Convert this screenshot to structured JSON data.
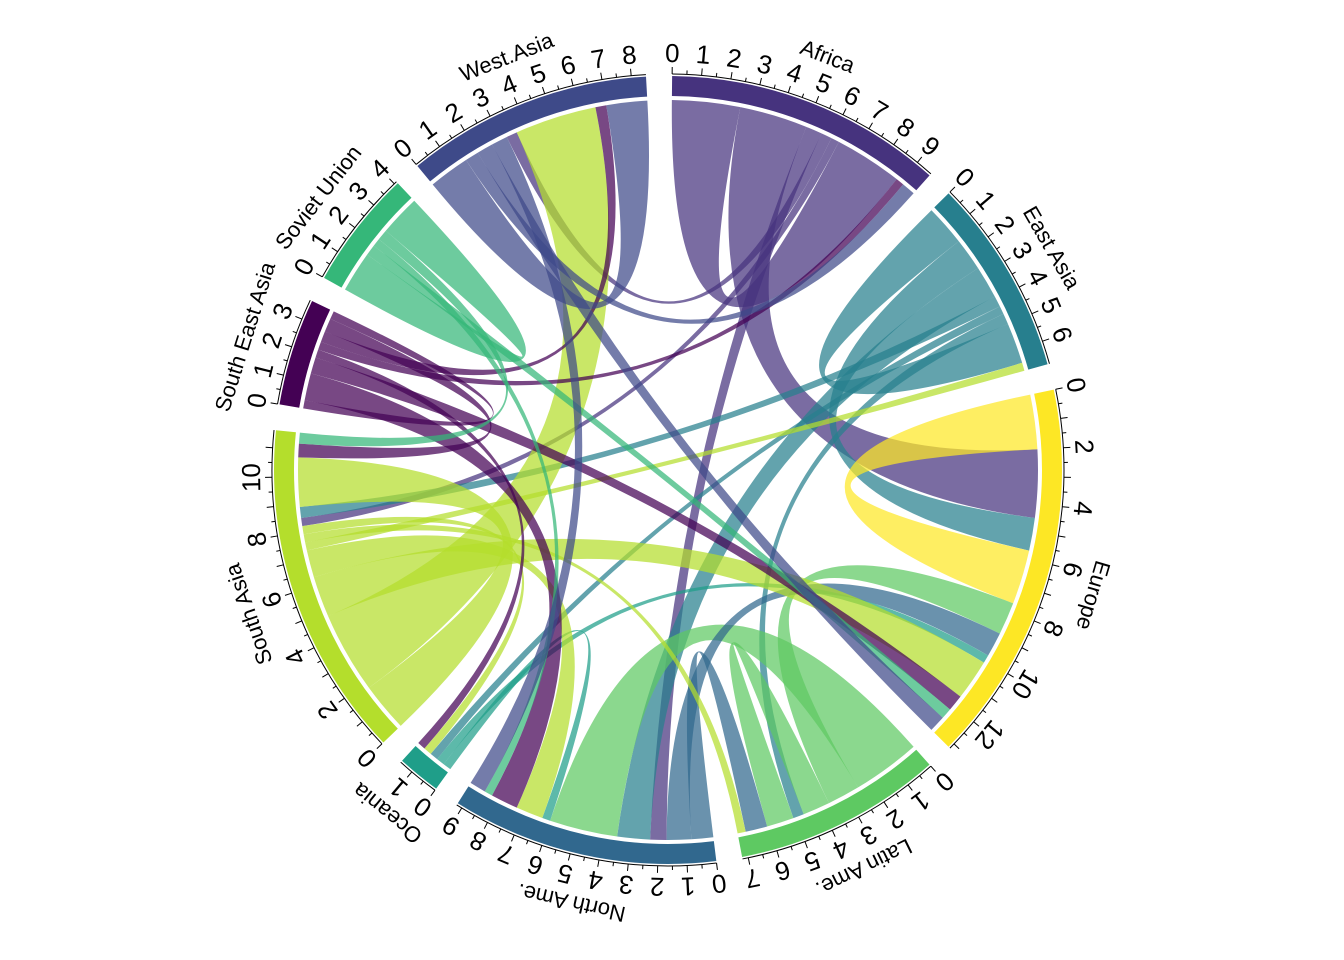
{
  "chart_data": {
    "type": "chord",
    "title": "",
    "tick_step": 1,
    "sectors": [
      {
        "name": "Africa",
        "color": "#46337E",
        "label_step": 1
      },
      {
        "name": "East Asia",
        "color": "#277F8E",
        "label_step": 1
      },
      {
        "name": "Europe",
        "color": "#FDE725",
        "label_step": 2
      },
      {
        "name": "Latin Ame.",
        "color": "#5EC962",
        "label_step": 1
      },
      {
        "name": "North Ame.",
        "color": "#31688E",
        "label_step": 1
      },
      {
        "name": "Oceania",
        "color": "#1F9E89",
        "label_step": 1
      },
      {
        "name": "South Asia",
        "color": "#B4DE2C",
        "label_step": 2
      },
      {
        "name": "South East Asia",
        "color": "#440154",
        "label_step": 1
      },
      {
        "name": "Soviet Union",
        "color": "#35B779",
        "label_step": 1
      },
      {
        "name": "West.Asia",
        "color": "#3E4A89",
        "label_step": 1
      }
    ],
    "flows": [
      {
        "from": "Africa",
        "to": "Africa",
        "value": 2.5
      },
      {
        "from": "Africa",
        "to": "Europe",
        "value": 2.5
      },
      {
        "from": "Africa",
        "to": "North Ame.",
        "value": 0.6
      },
      {
        "from": "Africa",
        "to": "West.Asia",
        "value": 0.4
      },
      {
        "from": "Africa",
        "to": "South Asia",
        "value": 0.3
      },
      {
        "from": "East Asia",
        "to": "East Asia",
        "value": 1.5
      },
      {
        "from": "East Asia",
        "to": "Europe",
        "value": 1.2
      },
      {
        "from": "East Asia",
        "to": "North Ame.",
        "value": 1.2
      },
      {
        "from": "East Asia",
        "to": "South Asia",
        "value": 0.4
      },
      {
        "from": "East Asia",
        "to": "Oceania",
        "value": 0.3
      },
      {
        "from": "East Asia",
        "to": "Latin Ame.",
        "value": 0.4
      },
      {
        "from": "Europe",
        "to": "Europe",
        "value": 2.0
      },
      {
        "from": "Latin Ame.",
        "to": "North Ame.",
        "value": 2.5
      },
      {
        "from": "Latin Ame.",
        "to": "Europe",
        "value": 1.2
      },
      {
        "from": "Latin Ame.",
        "to": "Latin Ame.",
        "value": 1.0
      },
      {
        "from": "North Ame.",
        "to": "Latin Ame.",
        "value": 0.8
      },
      {
        "from": "North Ame.",
        "to": "Europe",
        "value": 0.9
      },
      {
        "from": "Oceania",
        "to": "North Ame.",
        "value": 0.3
      },
      {
        "from": "Oceania",
        "to": "Europe",
        "value": 0.3
      },
      {
        "from": "South Asia",
        "to": "South Asia",
        "value": 1.8
      },
      {
        "from": "South Asia",
        "to": "West.Asia",
        "value": 3.0
      },
      {
        "from": "South Asia",
        "to": "Europe",
        "value": 1.5
      },
      {
        "from": "South Asia",
        "to": "North Ame.",
        "value": 1.0
      },
      {
        "from": "South Asia",
        "to": "East Asia",
        "value": 0.3
      },
      {
        "from": "South Asia",
        "to": "Latin Ame.",
        "value": 0.3
      },
      {
        "from": "South Asia",
        "to": "Oceania",
        "value": 0.3
      },
      {
        "from": "South East Asia",
        "to": "South East Asia",
        "value": 0.3
      },
      {
        "from": "South East Asia",
        "to": "North Ame.",
        "value": 1.0
      },
      {
        "from": "South East Asia",
        "to": "Europe",
        "value": 0.6
      },
      {
        "from": "South East Asia",
        "to": "Oceania",
        "value": 0.3
      },
      {
        "from": "South East Asia",
        "to": "Africa",
        "value": 0.3
      },
      {
        "from": "South East Asia",
        "to": "West.Asia",
        "value": 0.4
      },
      {
        "from": "South East Asia",
        "to": "South Asia",
        "value": 0.5
      },
      {
        "from": "Soviet Union",
        "to": "Soviet Union",
        "value": 1.5
      },
      {
        "from": "Soviet Union",
        "to": "Europe",
        "value": 0.4
      },
      {
        "from": "Soviet Union",
        "to": "North Ame.",
        "value": 0.3
      },
      {
        "from": "Soviet Union",
        "to": "South Asia",
        "value": 0.4
      },
      {
        "from": "West.Asia",
        "to": "West.Asia",
        "value": 1.5
      },
      {
        "from": "West.Asia",
        "to": "Africa",
        "value": 0.5
      },
      {
        "from": "West.Asia",
        "to": "Europe",
        "value": 0.6
      },
      {
        "from": "West.Asia",
        "to": "North Ame.",
        "value": 0.6
      }
    ]
  }
}
